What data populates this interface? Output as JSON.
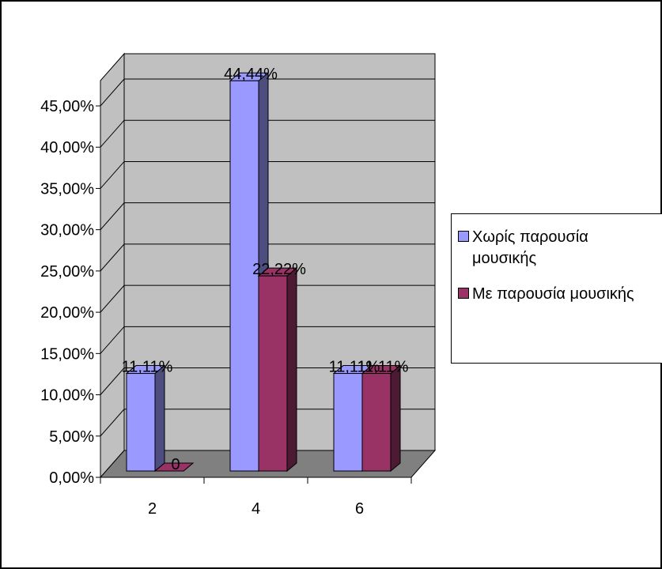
{
  "chart_data": {
    "type": "bar",
    "title": "",
    "xlabel": "",
    "ylabel": "",
    "categories": [
      "2",
      "4",
      "6"
    ],
    "series": [
      {
        "name": "Χωρίς παρουσία μουσικής",
        "name_lines": [
          "Χωρίς παρουσία",
          "μουσικής"
        ],
        "values": [
          11.11,
          44.44,
          11.11
        ],
        "labels": [
          "11,11%",
          "44,44%",
          "11,11%"
        ],
        "color": "#9999ff",
        "side_color": "#4d4d80"
      },
      {
        "name": "Με παρουσία μουσικής",
        "name_lines": [
          "Με παρουσία μουσικής"
        ],
        "values": [
          0,
          22.22,
          11.11
        ],
        "labels": [
          "0",
          "22,22%",
          "11,11%"
        ],
        "color": "#993366",
        "side_color": "#4d1a33"
      }
    ],
    "ylim": [
      0,
      45
    ],
    "yticks": [
      0,
      5,
      10,
      15,
      20,
      25,
      30,
      35,
      40,
      45
    ],
    "ytick_labels": [
      "0,00%",
      "5,00%",
      "10,00%",
      "15,00%",
      "20,00%",
      "25,00%",
      "30,00%",
      "35,00%",
      "40,00%",
      "45,00%"
    ],
    "grid": true,
    "legend_position": "right",
    "style": "3d-clustered-column",
    "colors": {
      "wall": "#c0c0c0",
      "floor": "#808080",
      "gridline": "#000000"
    }
  }
}
